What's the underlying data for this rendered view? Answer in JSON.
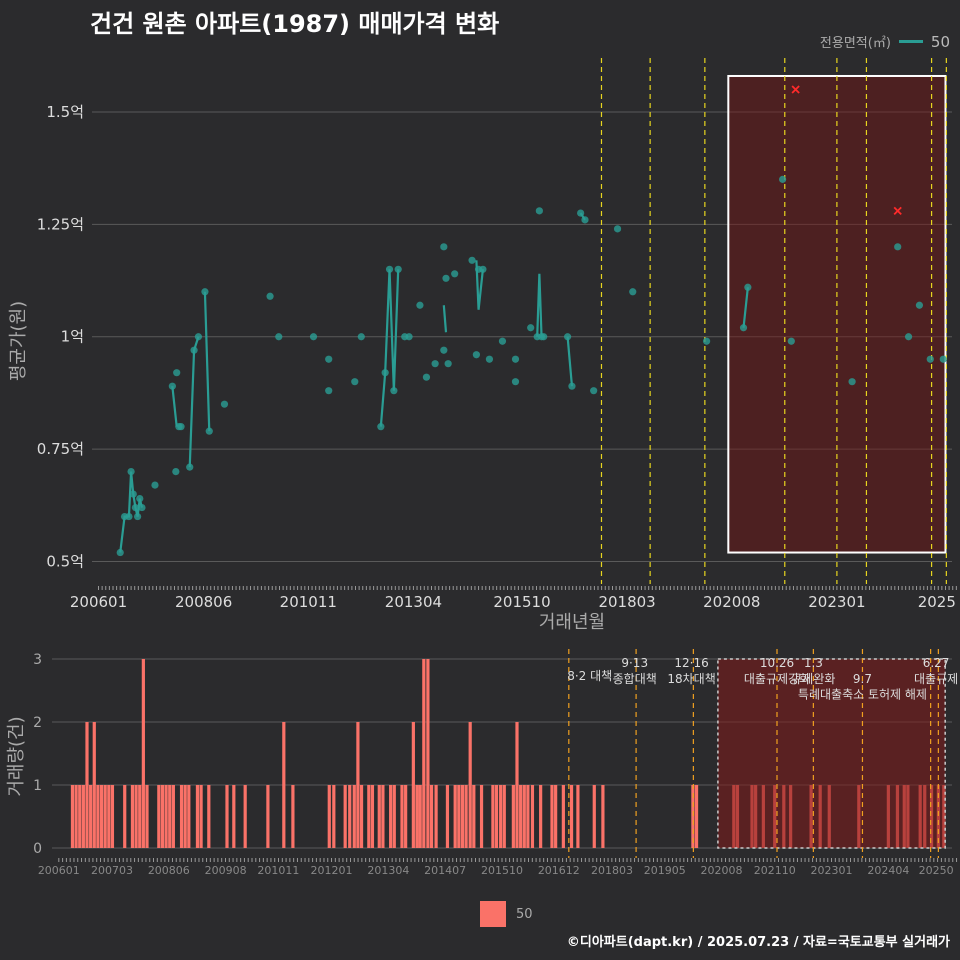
{
  "title": "건건 원촌 아파트(1987) 매매가격 변화",
  "credit": "©디아파트(dapt.kr) / 2025.07.23 / 자료=국토교통부 실거래가",
  "legend_top": {
    "title": "전용면적(㎡)",
    "value": "50"
  },
  "legend_bottom": {
    "value": "50"
  },
  "colors": {
    "series": "#2a9d94",
    "bar": "#fa7268",
    "policy": "#e7d51f",
    "highlight": "#ffffff",
    "x_mark": "#ff2a2a"
  },
  "chart_data": [
    {
      "type": "line",
      "title": "건건 원촌 아파트(1987) 매매가격 변화",
      "xlabel": "거래년월",
      "ylabel": "평균가(원)",
      "xlim": [
        2005.85,
        2025.65
      ],
      "ylim": [
        0.45,
        1.62
      ],
      "x_ticks": [
        {
          "x": 2006.0,
          "label": "200601"
        },
        {
          "x": 2008.42,
          "label": "200806"
        },
        {
          "x": 2010.83,
          "label": "201011"
        },
        {
          "x": 2013.25,
          "label": "201304"
        },
        {
          "x": 2015.75,
          "label": "201510"
        },
        {
          "x": 2018.17,
          "label": "201803"
        },
        {
          "x": 2020.58,
          "label": "202008"
        },
        {
          "x": 2023.0,
          "label": "202301"
        },
        {
          "x": 2025.3,
          "label": "2025"
        }
      ],
      "y_ticks": [
        {
          "y": 0.5,
          "label": "0.5억"
        },
        {
          "y": 0.75,
          "label": "0.75억"
        },
        {
          "y": 1.0,
          "label": "1억"
        },
        {
          "y": 1.25,
          "label": "1.25억"
        },
        {
          "y": 1.5,
          "label": "1.5억"
        }
      ],
      "series": [
        {
          "name": "50",
          "points": [
            [
              2006.5,
              0.52
            ],
            [
              2006.6,
              0.6
            ],
            [
              2006.7,
              0.6
            ],
            [
              2006.75,
              0.7
            ],
            [
              2006.8,
              0.65
            ],
            [
              2006.85,
              0.62
            ],
            [
              2006.9,
              0.6
            ],
            [
              2006.95,
              0.64
            ],
            [
              2007.0,
              0.62
            ],
            [
              2007.3,
              0.67
            ],
            [
              2007.7,
              0.89
            ],
            [
              2007.78,
              0.7
            ],
            [
              2007.8,
              0.92
            ],
            [
              2007.85,
              0.8
            ],
            [
              2007.9,
              0.8
            ],
            [
              2008.1,
              0.71
            ],
            [
              2008.2,
              0.97
            ],
            [
              2008.3,
              1.0
            ],
            [
              2008.45,
              1.1
            ],
            [
              2008.55,
              0.79
            ],
            [
              2008.9,
              0.85
            ],
            [
              2009.95,
              1.09
            ],
            [
              2010.15,
              1.0
            ],
            [
              2010.95,
              1.0
            ],
            [
              2011.3,
              0.95
            ],
            [
              2011.3,
              0.88
            ],
            [
              2011.9,
              0.9
            ],
            [
              2012.05,
              1.0
            ],
            [
              2012.5,
              0.8
            ],
            [
              2012.6,
              0.92
            ],
            [
              2012.7,
              1.15
            ],
            [
              2012.8,
              0.88
            ],
            [
              2012.9,
              1.15
            ],
            [
              2013.05,
              1.0
            ],
            [
              2013.15,
              1.0
            ],
            [
              2013.4,
              1.07
            ],
            [
              2013.55,
              0.91
            ],
            [
              2013.75,
              0.94
            ],
            [
              2013.95,
              1.2
            ],
            [
              2013.95,
              0.97
            ],
            [
              2014.0,
              1.13
            ],
            [
              2014.05,
              0.94
            ],
            [
              2014.2,
              1.14
            ],
            [
              2014.6,
              1.17
            ],
            [
              2014.7,
              0.96
            ],
            [
              2014.75,
              1.15
            ],
            [
              2014.85,
              1.15
            ],
            [
              2015.0,
              0.95
            ],
            [
              2015.3,
              0.99
            ],
            [
              2015.6,
              0.95
            ],
            [
              2015.6,
              0.9
            ],
            [
              2015.95,
              1.02
            ],
            [
              2016.1,
              1.0
            ],
            [
              2016.15,
              1.28
            ],
            [
              2016.2,
              1.0
            ],
            [
              2016.25,
              1.0
            ],
            [
              2016.8,
              1.0
            ],
            [
              2016.9,
              0.89
            ],
            [
              2017.1,
              1.275
            ],
            [
              2017.2,
              1.26
            ],
            [
              2017.4,
              0.88
            ],
            [
              2017.95,
              1.24
            ],
            [
              2018.3,
              1.1
            ],
            [
              2020.0,
              0.99
            ],
            [
              2020.85,
              1.02
            ],
            [
              2020.95,
              1.11
            ],
            [
              2021.75,
              1.35
            ],
            [
              2021.95,
              0.99
            ],
            [
              2023.35,
              0.9
            ],
            [
              2024.4,
              1.2
            ],
            [
              2024.65,
              1.0
            ],
            [
              2024.9,
              1.07
            ],
            [
              2025.15,
              0.95
            ],
            [
              2025.45,
              0.95
            ]
          ]
        }
      ],
      "line_segments": [
        [
          [
            2006.5,
            0.52
          ],
          [
            2006.6,
            0.6
          ],
          [
            2006.7,
            0.6
          ],
          [
            2006.75,
            0.7
          ],
          [
            2006.8,
            0.65
          ],
          [
            2006.85,
            0.62
          ],
          [
            2006.9,
            0.6
          ],
          [
            2006.95,
            0.64
          ],
          [
            2007.0,
            0.62
          ]
        ],
        [
          [
            2007.7,
            0.89
          ],
          [
            2007.8,
            0.8
          ]
        ],
        [
          [
            2008.1,
            0.71
          ],
          [
            2008.2,
            0.97
          ],
          [
            2008.3,
            1.0
          ]
        ],
        [
          [
            2008.45,
            1.1
          ],
          [
            2008.55,
            0.79
          ]
        ],
        [
          [
            2012.5,
            0.8
          ],
          [
            2012.6,
            0.92
          ],
          [
            2012.7,
            1.15
          ],
          [
            2012.8,
            0.88
          ],
          [
            2012.9,
            1.15
          ]
        ],
        [
          [
            2013.95,
            1.07
          ],
          [
            2014.0,
            1.01
          ]
        ],
        [
          [
            2014.7,
            1.17
          ],
          [
            2014.75,
            1.06
          ],
          [
            2014.85,
            1.15
          ]
        ],
        [
          [
            2016.1,
            1.0
          ],
          [
            2016.15,
            1.14
          ],
          [
            2016.2,
            1.0
          ],
          [
            2016.25,
            1.0
          ]
        ],
        [
          [
            2016.8,
            1.0
          ],
          [
            2016.9,
            0.89
          ]
        ],
        [
          [
            2017.1,
            1.275
          ],
          [
            2017.2,
            1.26
          ]
        ],
        [
          [
            2020.85,
            1.02
          ],
          [
            2020.95,
            1.11
          ]
        ]
      ],
      "x_marks": [
        [
          2022.05,
          1.55
        ],
        [
          2024.4,
          1.28
        ]
      ],
      "policy_lines": [
        2017.58,
        2018.7,
        2019.96,
        2021.8,
        2023.0,
        2023.68,
        2025.18,
        2025.52
      ],
      "highlight": {
        "x_start": 2020.5,
        "x_end": 2025.5,
        "y_start": 0.52,
        "y_end": 1.58
      }
    },
    {
      "type": "bar",
      "ylabel": "거래량(건)",
      "xlim": [
        2005.85,
        2025.65
      ],
      "ylim": [
        0,
        3
      ],
      "y_ticks": [
        {
          "y": 0,
          "label": "0"
        },
        {
          "y": 1,
          "label": "1"
        },
        {
          "y": 2,
          "label": "2"
        },
        {
          "y": 3,
          "label": "3"
        }
      ],
      "x_ticks": [
        {
          "x": 2006.0,
          "label": "200601"
        },
        {
          "x": 2007.17,
          "label": "200703"
        },
        {
          "x": 2008.42,
          "label": "200806"
        },
        {
          "x": 2009.67,
          "label": "200908"
        },
        {
          "x": 2010.83,
          "label": "201011"
        },
        {
          "x": 2012.0,
          "label": "201201"
        },
        {
          "x": 2013.25,
          "label": "201304"
        },
        {
          "x": 2014.5,
          "label": "201407"
        },
        {
          "x": 2015.75,
          "label": "201510"
        },
        {
          "x": 2017.0,
          "label": "201612"
        },
        {
          "x": 2018.17,
          "label": "201803"
        },
        {
          "x": 2019.33,
          "label": "201905"
        },
        {
          "x": 2020.58,
          "label": "202008"
        },
        {
          "x": 2021.75,
          "label": "202110"
        },
        {
          "x": 2023.0,
          "label": "202301"
        },
        {
          "x": 2024.25,
          "label": "202404"
        },
        {
          "x": 2025.3,
          "label": "20250"
        }
      ],
      "bars": [
        [
          2006.3,
          1
        ],
        [
          2006.38,
          1
        ],
        [
          2006.46,
          1
        ],
        [
          2006.54,
          1
        ],
        [
          2006.62,
          2
        ],
        [
          2006.7,
          1
        ],
        [
          2006.78,
          2
        ],
        [
          2006.86,
          1
        ],
        [
          2006.94,
          1
        ],
        [
          2007.02,
          1
        ],
        [
          2007.1,
          1
        ],
        [
          2007.18,
          1
        ],
        [
          2007.45,
          1
        ],
        [
          2007.62,
          1
        ],
        [
          2007.7,
          1
        ],
        [
          2007.78,
          1
        ],
        [
          2007.86,
          3
        ],
        [
          2007.94,
          1
        ],
        [
          2008.2,
          1
        ],
        [
          2008.28,
          1
        ],
        [
          2008.36,
          1
        ],
        [
          2008.44,
          1
        ],
        [
          2008.52,
          1
        ],
        [
          2008.7,
          1
        ],
        [
          2008.78,
          1
        ],
        [
          2008.86,
          1
        ],
        [
          2009.05,
          1
        ],
        [
          2009.13,
          1
        ],
        [
          2009.3,
          1
        ],
        [
          2009.7,
          1
        ],
        [
          2009.85,
          1
        ],
        [
          2010.1,
          1
        ],
        [
          2010.6,
          1
        ],
        [
          2010.95,
          2
        ],
        [
          2011.15,
          1
        ],
        [
          2011.95,
          1
        ],
        [
          2012.05,
          1
        ],
        [
          2012.3,
          1
        ],
        [
          2012.4,
          1
        ],
        [
          2012.5,
          1
        ],
        [
          2012.58,
          2
        ],
        [
          2012.66,
          1
        ],
        [
          2012.82,
          1
        ],
        [
          2012.9,
          1
        ],
        [
          2013.05,
          1
        ],
        [
          2013.13,
          1
        ],
        [
          2013.3,
          1
        ],
        [
          2013.38,
          1
        ],
        [
          2013.55,
          1
        ],
        [
          2013.63,
          1
        ],
        [
          2013.8,
          2
        ],
        [
          2013.88,
          1
        ],
        [
          2013.95,
          1
        ],
        [
          2014.03,
          3
        ],
        [
          2014.12,
          3
        ],
        [
          2014.2,
          1
        ],
        [
          2014.3,
          1
        ],
        [
          2014.55,
          1
        ],
        [
          2014.72,
          1
        ],
        [
          2014.8,
          1
        ],
        [
          2014.88,
          1
        ],
        [
          2014.96,
          1
        ],
        [
          2015.05,
          2
        ],
        [
          2015.13,
          1
        ],
        [
          2015.3,
          1
        ],
        [
          2015.55,
          1
        ],
        [
          2015.63,
          1
        ],
        [
          2015.72,
          1
        ],
        [
          2015.8,
          1
        ],
        [
          2016.0,
          1
        ],
        [
          2016.08,
          2
        ],
        [
          2016.16,
          1
        ],
        [
          2016.24,
          1
        ],
        [
          2016.32,
          1
        ],
        [
          2016.42,
          1
        ],
        [
          2016.6,
          1
        ],
        [
          2016.85,
          1
        ],
        [
          2016.93,
          1
        ],
        [
          2017.1,
          1
        ],
        [
          2017.28,
          1
        ],
        [
          2017.42,
          1
        ],
        [
          2017.78,
          1
        ],
        [
          2017.97,
          1
        ],
        [
          2019.95,
          1
        ],
        [
          2020.03,
          1
        ],
        [
          2020.85,
          1
        ],
        [
          2020.93,
          1
        ],
        [
          2021.25,
          1
        ],
        [
          2021.33,
          1
        ],
        [
          2021.5,
          1
        ],
        [
          2021.75,
          1
        ],
        [
          2021.95,
          1
        ],
        [
          2022.1,
          1
        ],
        [
          2022.55,
          1
        ],
        [
          2022.75,
          1
        ],
        [
          2022.95,
          1
        ],
        [
          2023.6,
          1
        ],
        [
          2024.25,
          1
        ],
        [
          2024.45,
          1
        ],
        [
          2024.6,
          1
        ],
        [
          2024.68,
          1
        ],
        [
          2024.95,
          1
        ],
        [
          2025.05,
          1
        ],
        [
          2025.2,
          1
        ],
        [
          2025.35,
          1
        ],
        [
          2025.47,
          1
        ]
      ],
      "policy_lines": [
        2017.22,
        2018.7,
        2019.96,
        2021.8,
        2022.6,
        2023.68,
        2025.18,
        2025.35
      ],
      "annotations": [
        {
          "x": 2017.68,
          "y": 2.75,
          "label": "8·2 대책"
        },
        {
          "x": 2018.67,
          "y": 2.95,
          "label": "9·13"
        },
        {
          "x": 2018.67,
          "y": 2.7,
          "label": "종합대책"
        },
        {
          "x": 2019.92,
          "y": 2.95,
          "label": "12·16"
        },
        {
          "x": 2019.92,
          "y": 2.7,
          "label": "18차대책"
        },
        {
          "x": 2021.8,
          "y": 2.95,
          "label": "10.26"
        },
        {
          "x": 2021.8,
          "y": 2.7,
          "label": "대출규제강화"
        },
        {
          "x": 2022.6,
          "y": 2.95,
          "label": "1.3"
        },
        {
          "x": 2022.6,
          "y": 2.7,
          "label": "규제완화"
        },
        {
          "x": 2023.68,
          "y": 2.7,
          "label": "9.7"
        },
        {
          "x": 2023.68,
          "y": 2.45,
          "label": "특례대출축소 토허제 해제"
        },
        {
          "x": 2025.3,
          "y": 2.95,
          "label": "6.27"
        },
        {
          "x": 2025.3,
          "y": 2.7,
          "label": "대출규제"
        }
      ],
      "highlight": {
        "x_start": 2020.5,
        "x_end": 2025.5,
        "y_start": 0,
        "y_end": 3
      }
    }
  ]
}
